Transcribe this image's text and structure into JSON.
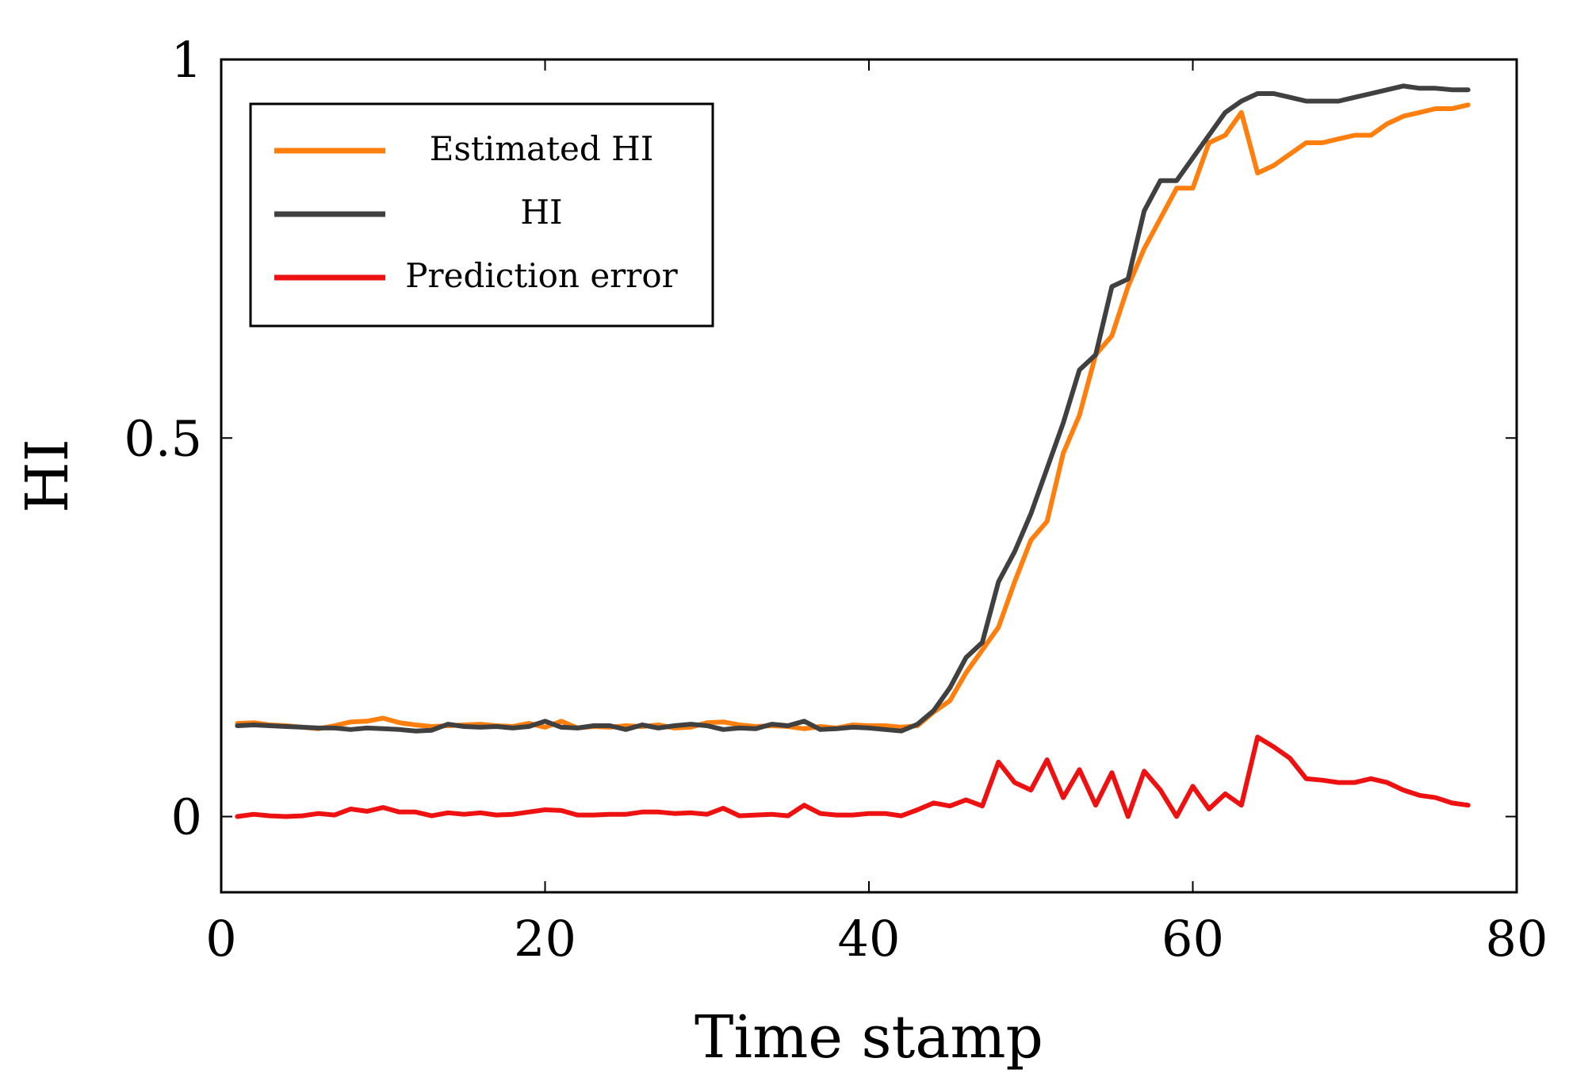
{
  "chart_data": {
    "type": "line",
    "title": "",
    "xlabel": "Time stamp",
    "ylabel": "HI",
    "xlim": [
      0,
      80
    ],
    "ylim": [
      -0.1,
      1.0
    ],
    "x_ticks": [
      0,
      20,
      40,
      60,
      80
    ],
    "x_tick_labels": [
      "0",
      "20",
      "40",
      "60",
      "80"
    ],
    "y_ticks": [
      0,
      0.5,
      1
    ],
    "y_tick_labels": [
      "0",
      "0.5",
      "1"
    ],
    "grid": false,
    "legend_position": "top-left",
    "x": [
      1,
      2,
      3,
      4,
      5,
      6,
      7,
      8,
      9,
      10,
      11,
      12,
      13,
      14,
      15,
      16,
      17,
      18,
      19,
      20,
      21,
      22,
      23,
      24,
      25,
      26,
      27,
      28,
      29,
      30,
      31,
      32,
      33,
      34,
      35,
      36,
      37,
      38,
      39,
      40,
      41,
      42,
      43,
      44,
      45,
      46,
      47,
      48,
      49,
      50,
      51,
      52,
      53,
      54,
      55,
      56,
      57,
      58,
      59,
      60,
      61,
      62,
      63,
      64,
      65,
      66,
      67,
      68,
      69,
      70,
      71,
      72,
      73,
      74,
      75,
      76,
      77
    ],
    "series": [
      {
        "name": "Estimated HI",
        "color": "#ff7f0e",
        "values": [
          0.123,
          0.124,
          0.121,
          0.12,
          0.118,
          0.116,
          0.12,
          0.125,
          0.126,
          0.13,
          0.124,
          0.121,
          0.119,
          0.12,
          0.121,
          0.122,
          0.12,
          0.119,
          0.123,
          0.118,
          0.126,
          0.117,
          0.119,
          0.118,
          0.12,
          0.119,
          0.121,
          0.117,
          0.118,
          0.124,
          0.125,
          0.121,
          0.119,
          0.12,
          0.119,
          0.116,
          0.119,
          0.117,
          0.121,
          0.12,
          0.12,
          0.118,
          0.12,
          0.138,
          0.153,
          0.19,
          0.22,
          0.25,
          0.31,
          0.365,
          0.39,
          0.48,
          0.53,
          0.61,
          0.635,
          0.7,
          0.75,
          0.79,
          0.83,
          0.83,
          0.89,
          0.9,
          0.93,
          0.85,
          0.86,
          0.875,
          0.89,
          0.89,
          0.895,
          0.9,
          0.9,
          0.915,
          0.925,
          0.93,
          0.935,
          0.935,
          0.94
        ]
      },
      {
        "name": "HI",
        "color": "#404040",
        "values": [
          0.12,
          0.121,
          0.12,
          0.119,
          0.118,
          0.117,
          0.117,
          0.115,
          0.117,
          0.116,
          0.115,
          0.113,
          0.114,
          0.122,
          0.119,
          0.118,
          0.119,
          0.117,
          0.119,
          0.126,
          0.118,
          0.117,
          0.12,
          0.12,
          0.115,
          0.121,
          0.117,
          0.12,
          0.122,
          0.12,
          0.115,
          0.117,
          0.116,
          0.122,
          0.12,
          0.126,
          0.115,
          0.116,
          0.118,
          0.117,
          0.115,
          0.113,
          0.122,
          0.14,
          0.17,
          0.21,
          0.23,
          0.31,
          0.35,
          0.4,
          0.46,
          0.52,
          0.59,
          0.61,
          0.7,
          0.71,
          0.8,
          0.84,
          0.84,
          0.87,
          0.9,
          0.93,
          0.945,
          0.955,
          0.955,
          0.95,
          0.945,
          0.945,
          0.945,
          0.95,
          0.955,
          0.96,
          0.965,
          0.962,
          0.962,
          0.96,
          0.96
        ]
      },
      {
        "name": "Prediction error",
        "color": "#ee1111",
        "values": [
          0.0,
          0.003,
          0.001,
          0.0,
          0.001,
          0.004,
          0.002,
          0.01,
          0.007,
          0.012,
          0.006,
          0.006,
          0.001,
          0.005,
          0.003,
          0.005,
          0.002,
          0.003,
          0.006,
          0.009,
          0.008,
          0.002,
          0.002,
          0.003,
          0.003,
          0.006,
          0.006,
          0.004,
          0.005,
          0.003,
          0.011,
          0.001,
          0.002,
          0.003,
          0.001,
          0.015,
          0.004,
          0.002,
          0.002,
          0.004,
          0.004,
          0.001,
          0.009,
          0.018,
          0.014,
          0.022,
          0.014,
          0.072,
          0.045,
          0.035,
          0.075,
          0.025,
          0.062,
          0.015,
          0.058,
          0.0,
          0.06,
          0.035,
          0.0,
          0.04,
          0.01,
          0.03,
          0.015,
          0.105,
          0.092,
          0.077,
          0.05,
          0.048,
          0.045,
          0.045,
          0.05,
          0.045,
          0.035,
          0.028,
          0.025,
          0.018,
          0.015
        ]
      }
    ]
  }
}
